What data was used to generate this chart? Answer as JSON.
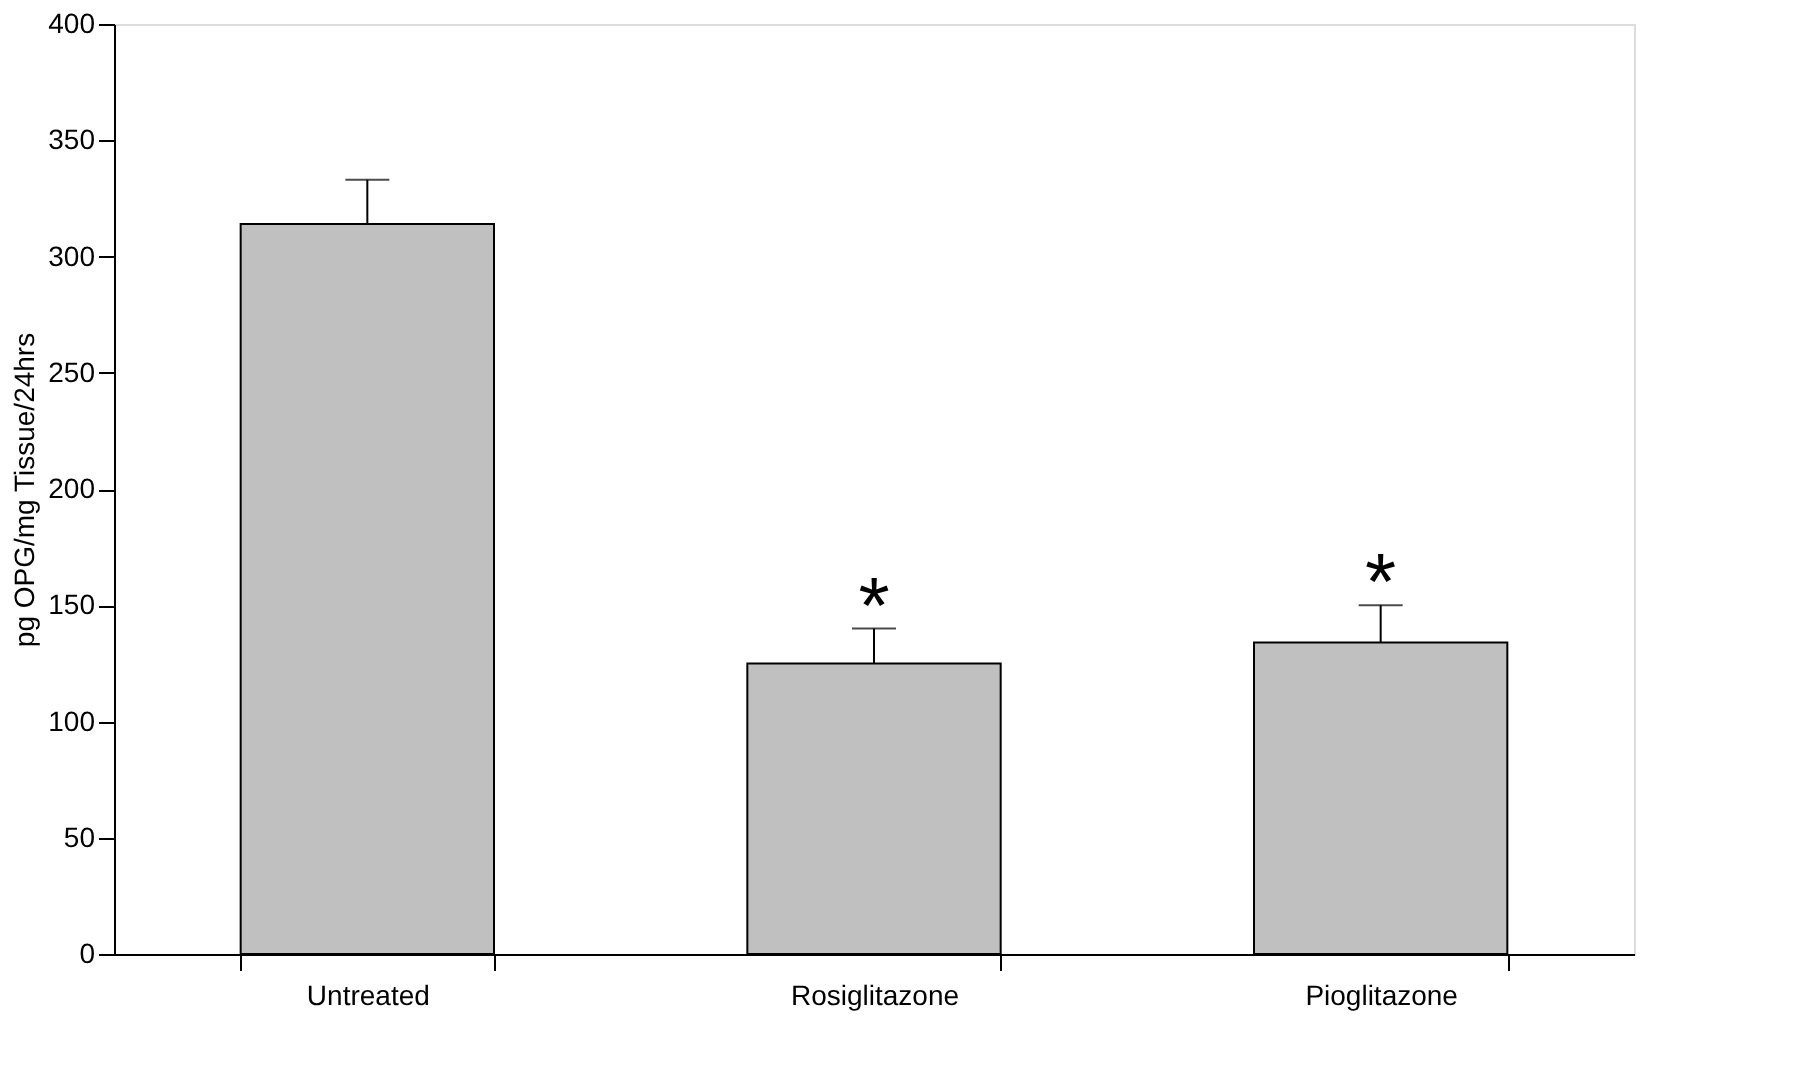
{
  "chart_data": {
    "type": "bar",
    "ylabel": "pg OPG/mg Tissue/24hrs",
    "categories": [
      "Untreated",
      "Rosiglitazone",
      "Pioglitazone"
    ],
    "values": [
      314,
      125,
      134
    ],
    "color": "#c0c0c0",
    "errors": [
      [
        314,
        333
      ],
      [
        125,
        140
      ],
      [
        134,
        150
      ]
    ],
    "ylim": [
      0,
      400
    ],
    "yticks": [
      0,
      50,
      100,
      150,
      200,
      250,
      300,
      350,
      400
    ],
    "grid": false,
    "annotations": [
      {
        "text": "*",
        "x": "Rosiglitazone",
        "y": 140
      },
      {
        "text": "*",
        "x": "Pioglitazone",
        "y": 150
      }
    ]
  }
}
